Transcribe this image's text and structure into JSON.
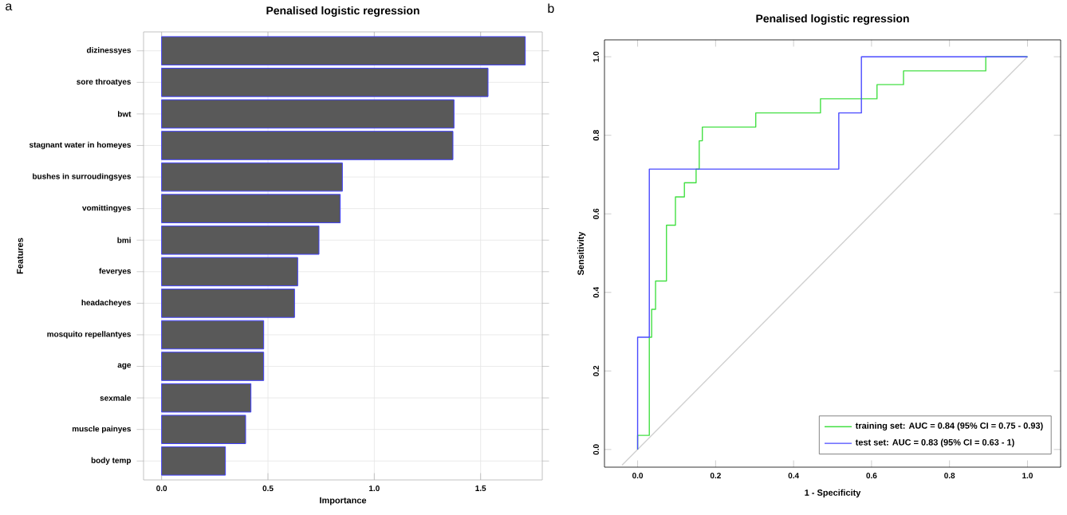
{
  "chart_data": [
    {
      "type": "bar",
      "orientation": "horizontal",
      "title": "Penalised logistic regression",
      "xlabel": "Importance",
      "ylabel": "Features",
      "categories": [
        "dizinessyes",
        "sore throatyes",
        "bwt",
        "stagnant water in homeyes",
        "bushes in surroudingsyes",
        "vomittingyes",
        "bmi",
        "feveryes",
        "headacheyes",
        "mosquito repellantyes",
        "age",
        "sexmale",
        "muscle painyes",
        "body temp"
      ],
      "values": [
        1.71,
        1.535,
        1.375,
        1.37,
        0.85,
        0.84,
        0.74,
        0.64,
        0.625,
        0.48,
        0.48,
        0.42,
        0.395,
        0.3
      ],
      "color": "#595959",
      "xlim": [
        -0.085,
        1.79
      ],
      "xticks": [
        {
          "value": 0,
          "label": "0.0"
        },
        {
          "value": 0.5,
          "label": "0.5"
        },
        {
          "value": 1,
          "label": "1.0"
        },
        {
          "value": 1.5,
          "label": "1.5"
        }
      ],
      "grid": true,
      "annotations": [
        "a"
      ]
    },
    {
      "type": "line",
      "title": "Penalised logistic regression",
      "xlabel": "1 - Specificity",
      "ylabel": "Sensitivity",
      "xlim": [
        -0.085,
        1.085
      ],
      "ylim": [
        -0.045,
        1.043
      ],
      "xticks": [
        {
          "value": 0,
          "label": "0.0"
        },
        {
          "value": 0.2,
          "label": "0.2"
        },
        {
          "value": 0.4,
          "label": "0.4"
        },
        {
          "value": 0.6,
          "label": "0.6"
        },
        {
          "value": 0.8,
          "label": "0.8"
        },
        {
          "value": 1,
          "label": "1.0"
        }
      ],
      "yticks": [
        {
          "value": 0,
          "label": "0.0"
        },
        {
          "value": 0.2,
          "label": "0.2"
        },
        {
          "value": 0.4,
          "label": "0.4"
        },
        {
          "value": 0.6,
          "label": "0.6"
        },
        {
          "value": 0.8,
          "label": "0.8"
        },
        {
          "value": 1,
          "label": "1.0"
        }
      ],
      "series": [
        {
          "color": "#d0d0d0",
          "x": [
            -0.04,
            1
          ],
          "values": [
            -0.04,
            1
          ]
        },
        {
          "name": "training set: AUC = 0.84 (95% CI = 0.75 - 0.93)",
          "color": "#44e044",
          "x": [
            0,
            0,
            0.03,
            0.03,
            0.036,
            0.036,
            0.046,
            0.046,
            0.074,
            0.074,
            0.097,
            0.097,
            0.12,
            0.12,
            0.15,
            0.15,
            0.158,
            0.158,
            0.166,
            0.166,
            0.303,
            0.303,
            0.469,
            0.469,
            0.614,
            0.614,
            0.682,
            0.682,
            0.893,
            0.893,
            1
          ],
          "values": [
            0,
            0.036,
            0.036,
            0.286,
            0.286,
            0.357,
            0.357,
            0.429,
            0.429,
            0.571,
            0.571,
            0.643,
            0.643,
            0.679,
            0.679,
            0.714,
            0.714,
            0.786,
            0.786,
            0.821,
            0.821,
            0.857,
            0.857,
            0.893,
            0.893,
            0.929,
            0.929,
            0.964,
            0.964,
            1,
            1
          ]
        },
        {
          "name": "test set: AUC = 0.83 (95% CI = 0.63 - 1)",
          "color": "#4a4aff",
          "x": [
            0,
            0,
            0.03,
            0.03,
            0.516,
            0.516,
            0.574,
            0.574,
            1
          ],
          "values": [
            0,
            0.286,
            0.286,
            0.714,
            0.714,
            0.857,
            0.857,
            1,
            1
          ]
        }
      ],
      "legend": "bottom right",
      "annotations": [
        "b"
      ]
    }
  ]
}
